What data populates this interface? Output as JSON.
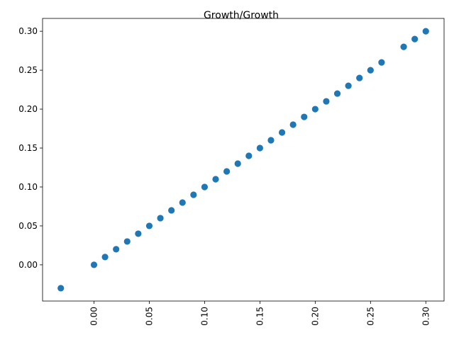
{
  "chart_data": {
    "type": "scatter",
    "title": "Growth/Growth",
    "xlabel": "",
    "ylabel": "",
    "xlim": [
      -0.0465,
      0.3165
    ],
    "ylim": [
      -0.0465,
      0.3165
    ],
    "grid": false,
    "x_ticks": [
      "0.00",
      "0.05",
      "0.10",
      "0.15",
      "0.20",
      "0.25",
      "0.30"
    ],
    "y_ticks": [
      "0.00",
      "0.05",
      "0.10",
      "0.15",
      "0.20",
      "0.25",
      "0.30"
    ],
    "x_tick_rotation": "vertical",
    "marker_color": "#1f77b4",
    "series": [
      {
        "x": [
          -0.03,
          0.0,
          0.01,
          0.02,
          0.03,
          0.04,
          0.05,
          0.06,
          0.07,
          0.08,
          0.09,
          0.1,
          0.11,
          0.12,
          0.13,
          0.14,
          0.15,
          0.16,
          0.17,
          0.18,
          0.19,
          0.2,
          0.21,
          0.22,
          0.23,
          0.24,
          0.25,
          0.26,
          0.28,
          0.29,
          0.3
        ],
        "y": [
          -0.03,
          0.0,
          0.01,
          0.02,
          0.03,
          0.04,
          0.05,
          0.06,
          0.07,
          0.08,
          0.09,
          0.1,
          0.11,
          0.12,
          0.13,
          0.14,
          0.15,
          0.16,
          0.17,
          0.18,
          0.19,
          0.2,
          0.21,
          0.22,
          0.23,
          0.24,
          0.25,
          0.26,
          0.28,
          0.29,
          0.3
        ]
      }
    ]
  }
}
